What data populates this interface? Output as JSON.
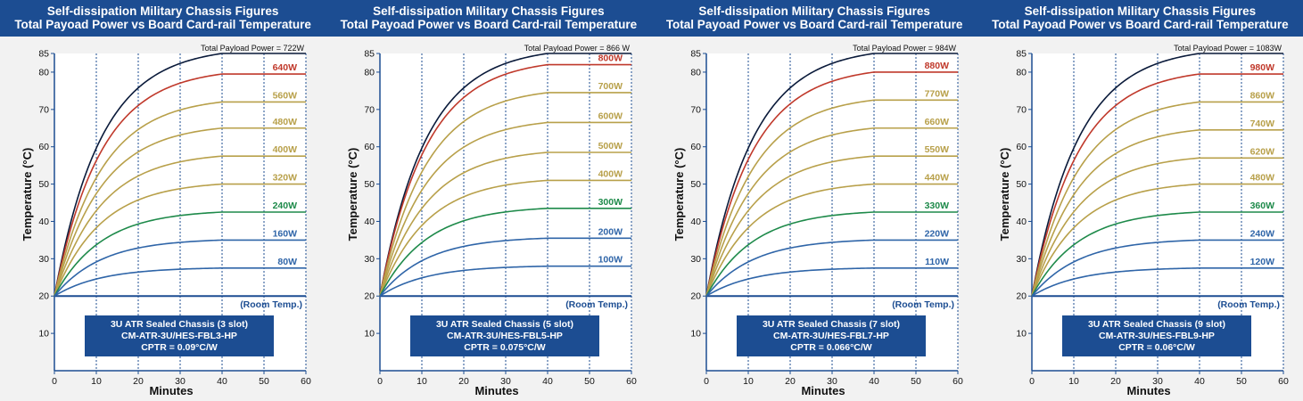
{
  "chart_data": [
    {
      "type": "line",
      "title_line1": "Self-dissipation Military Chassis Figures",
      "title_line2": "Total Payoad Power vs Board Card-rail Temperature",
      "xlabel": "Minutes",
      "ylabel": "Temperature (°C)",
      "xlim": [
        0,
        60
      ],
      "ylim": [
        0,
        85
      ],
      "x_ticks": [
        0,
        10,
        20,
        30,
        40,
        50,
        60
      ],
      "y_ticks": [
        10,
        20,
        30,
        40,
        50,
        60,
        70,
        80,
        85
      ],
      "room_label": "(Room Temp.)",
      "room_temp": 20,
      "total_label": "Total Payload Power = 722W",
      "total_final": 85,
      "series": [
        {
          "name": "640W",
          "final": 79.5,
          "color": "#c0392b"
        },
        {
          "name": "560W",
          "final": 72,
          "color": "#b8a04a"
        },
        {
          "name": "480W",
          "final": 65,
          "color": "#b8a04a"
        },
        {
          "name": "400W",
          "final": 57.5,
          "color": "#b8a04a"
        },
        {
          "name": "320W",
          "final": 50,
          "color": "#b8a04a"
        },
        {
          "name": "240W",
          "final": 42.5,
          "color": "#1e8a4a"
        },
        {
          "name": "160W",
          "final": 35,
          "color": "#2f65a8"
        },
        {
          "name": "80W",
          "final": 27.5,
          "color": "#2f65a8"
        }
      ],
      "info_box": [
        "3U ATR Sealed Chassis (3 slot)",
        "CM-ATR-3U/HES-FBL3-HP",
        "CPTR = 0.09°C/W"
      ]
    },
    {
      "type": "line",
      "title_line1": "Self-dissipation Military Chassis Figures",
      "title_line2": "Total Payoad Power vs Board Card-rail Temperature",
      "xlabel": "Minutes",
      "ylabel": "Temperature (°C)",
      "xlim": [
        0,
        60
      ],
      "ylim": [
        0,
        85
      ],
      "x_ticks": [
        0,
        10,
        20,
        30,
        40,
        50,
        60
      ],
      "y_ticks": [
        10,
        20,
        30,
        40,
        50,
        60,
        70,
        80,
        85
      ],
      "room_label": "(Room Temp.)",
      "room_temp": 20,
      "total_label": "Total Payload Power = 866 W",
      "total_final": 85,
      "series": [
        {
          "name": "800W",
          "final": 82,
          "color": "#c0392b"
        },
        {
          "name": "700W",
          "final": 74.5,
          "color": "#b8a04a"
        },
        {
          "name": "600W",
          "final": 66.5,
          "color": "#b8a04a"
        },
        {
          "name": "500W",
          "final": 58.5,
          "color": "#b8a04a"
        },
        {
          "name": "400W",
          "final": 51,
          "color": "#b8a04a"
        },
        {
          "name": "300W",
          "final": 43.5,
          "color": "#1e8a4a"
        },
        {
          "name": "200W",
          "final": 35.5,
          "color": "#2f65a8"
        },
        {
          "name": "100W",
          "final": 28,
          "color": "#2f65a8"
        }
      ],
      "info_box": [
        "3U ATR Sealed Chassis (5 slot)",
        "CM-ATR-3U/HES-FBL5-HP",
        "CPTR = 0.075°C/W"
      ]
    },
    {
      "type": "line",
      "title_line1": "Self-dissipation Military Chassis Figures",
      "title_line2": "Total Payoad Power vs Board Card-rail Temperature",
      "xlabel": "Minutes",
      "ylabel": "Temperature (°C)",
      "xlim": [
        0,
        60
      ],
      "ylim": [
        0,
        85
      ],
      "x_ticks": [
        0,
        10,
        20,
        30,
        40,
        50,
        60
      ],
      "y_ticks": [
        10,
        20,
        30,
        40,
        50,
        60,
        70,
        80,
        85
      ],
      "room_label": "(Room Temp.)",
      "room_temp": 20,
      "total_label": "Total Payload Power = 984W",
      "total_final": 85,
      "series": [
        {
          "name": "880W",
          "final": 80,
          "color": "#c0392b"
        },
        {
          "name": "770W",
          "final": 72.5,
          "color": "#b8a04a"
        },
        {
          "name": "660W",
          "final": 65,
          "color": "#b8a04a"
        },
        {
          "name": "550W",
          "final": 57.5,
          "color": "#b8a04a"
        },
        {
          "name": "440W",
          "final": 50,
          "color": "#b8a04a"
        },
        {
          "name": "330W",
          "final": 42.5,
          "color": "#1e8a4a"
        },
        {
          "name": "220W",
          "final": 35,
          "color": "#2f65a8"
        },
        {
          "name": "110W",
          "final": 27.5,
          "color": "#2f65a8"
        }
      ],
      "info_box": [
        "3U ATR Sealed Chassis (7 slot)",
        "CM-ATR-3U/HES-FBL7-HP",
        "CPTR = 0.066°C/W"
      ]
    },
    {
      "type": "line",
      "title_line1": "Self-dissipation Military Chassis Figures",
      "title_line2": "Total Payoad Power vs Board Card-rail Temperature",
      "xlabel": "Minutes",
      "ylabel": "Temperature (°C)",
      "xlim": [
        0,
        60
      ],
      "ylim": [
        0,
        85
      ],
      "x_ticks": [
        0,
        10,
        20,
        30,
        40,
        50,
        60
      ],
      "y_ticks": [
        10,
        20,
        30,
        40,
        50,
        60,
        70,
        80,
        85
      ],
      "room_label": "(Room Temp.)",
      "room_temp": 20,
      "total_label": "Total Payload Power = 1083W",
      "total_final": 85,
      "series": [
        {
          "name": "980W",
          "final": 79.5,
          "color": "#c0392b"
        },
        {
          "name": "860W",
          "final": 72,
          "color": "#b8a04a"
        },
        {
          "name": "740W",
          "final": 64.5,
          "color": "#b8a04a"
        },
        {
          "name": "620W",
          "final": 57,
          "color": "#b8a04a"
        },
        {
          "name": "480W",
          "final": 50,
          "color": "#b8a04a"
        },
        {
          "name": "360W",
          "final": 42.5,
          "color": "#1e8a4a"
        },
        {
          "name": "240W",
          "final": 35,
          "color": "#2f65a8"
        },
        {
          "name": "120W",
          "final": 27.5,
          "color": "#2f65a8"
        }
      ],
      "info_box": [
        "3U ATR Sealed Chassis (9 slot)",
        "CM-ATR-3U/HES-FBL9-HP",
        "CPTR = 0.06°C/W"
      ]
    }
  ],
  "style": {
    "header_bg": "#1c4d92",
    "axis_color": "#1c4d92",
    "total_color": "#0a1a3a",
    "room_color": "#1c4d92",
    "box_bg": "#1c4d92"
  }
}
